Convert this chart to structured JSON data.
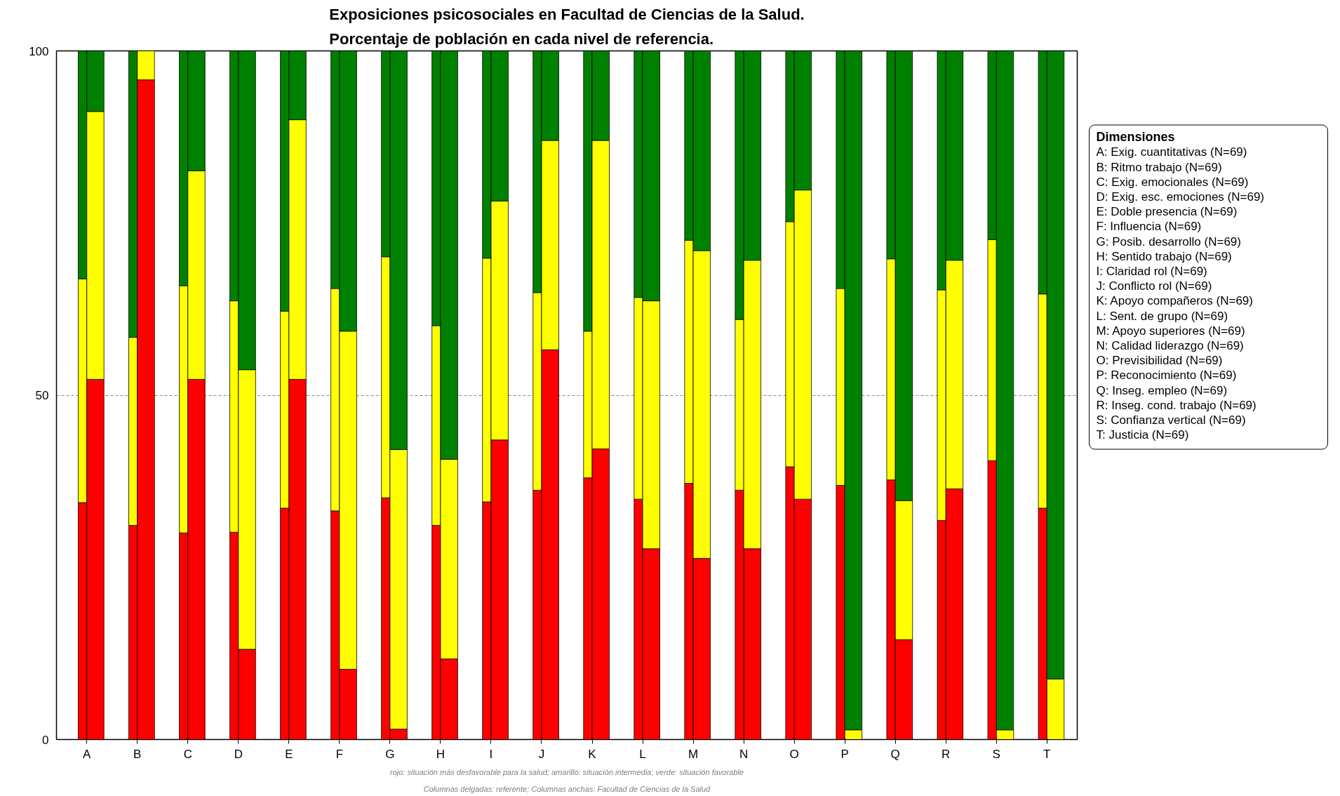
{
  "chart_data": [
    {
      "type": "bar",
      "stacked": true,
      "title": "Exposiciones psicosociales en Facultad de Ciencias de la Salud.\nPorcentaje de población en cada nivel de referencia.",
      "legend_title": "Dimensiones",
      "categories": [
        "A",
        "B",
        "C",
        "D",
        "E",
        "F",
        "G",
        "H",
        "I",
        "J",
        "K",
        "L",
        "M",
        "N",
        "O",
        "P",
        "Q",
        "R",
        "S",
        "T"
      ],
      "ylim": [
        0,
        100
      ],
      "yticks": [
        0,
        50,
        100
      ],
      "grid": "y",
      "line_style": "dashed",
      "series": [
        {
          "color": "#ff0000",
          "values": [
            34.4,
            31.1,
            30.0,
            30.1,
            33.6,
            33.2,
            35.1,
            31.1,
            34.5,
            36.2,
            38.0,
            34.9,
            37.2,
            36.2,
            39.6,
            36.9,
            37.7,
            31.8,
            40.5,
            33.6
          ]
        },
        {
          "color": "#ffff00",
          "values": [
            32.5,
            27.3,
            35.9,
            33.6,
            28.6,
            32.3,
            35.0,
            29.0,
            35.4,
            28.7,
            21.3,
            29.3,
            35.3,
            24.8,
            35.6,
            28.6,
            32.1,
            33.5,
            32.1,
            31.1
          ]
        },
        {
          "color": "#008000",
          "values": [
            33.1,
            41.6,
            34.1,
            36.3,
            37.8,
            34.5,
            29.9,
            39.9,
            30.1,
            35.1,
            40.7,
            35.8,
            27.5,
            39.0,
            24.8,
            34.5,
            30.2,
            34.7,
            27.4,
            35.3
          ]
        }
      ],
      "annotations": [
        "A: Exig. cuantitativas (N=69)",
        "B: Ritmo trabajo (N=69)",
        "C: Exig. emocionales (N=69)",
        "D: Exig. esc. emociones (N=69)",
        "E: Doble presencia (N=69)",
        "F: Influencia (N=69)",
        "G: Posib. desarrollo (N=69)",
        "H: Sentido trabajo (N=69)",
        "I: Claridad rol (N=69)",
        "J: Conflicto rol (N=69)",
        "K: Apoyo compañeros (N=69)",
        "L: Sent. de grupo (N=69)",
        "M: Apoyo superiores (N=69)",
        "N: Calidad liderazgo (N=69)",
        "O: Previsibilidad (N=69)",
        "P: Reconocimiento (N=69)",
        "Q: Inseg. empleo (N=69)",
        "R: Inseg. cond. trabajo (N=69)",
        "S: Confianza vertical (N=69)",
        "T: Justicia (N=69)",
        "rojo: situación más desfavorable para la salud; amarillo: situación intermedia; verde: situación favorable",
        "Columnas delgadas: referente; Columnas anchas: Facultad de Ciencias de la Salud"
      ]
    },
    {
      "type": "bar",
      "stacked": true,
      "ylim": [
        0,
        100
      ],
      "series": [
        {
          "color": "#ff0000",
          "values": [
            52.3,
            95.8,
            52.3,
            13.1,
            52.3,
            10.2,
            1.5,
            11.7,
            43.5,
            56.6,
            42.2,
            27.7,
            26.3,
            27.7,
            34.9,
            0,
            14.5,
            36.4,
            0,
            0
          ]
        },
        {
          "color": "#ffff00",
          "values": [
            38.9,
            4.2,
            30.3,
            40.6,
            37.7,
            49.1,
            40.6,
            29.0,
            34.7,
            30.4,
            44.8,
            36.0,
            44.7,
            41.9,
            44.9,
            1.4,
            20.2,
            33.2,
            1.4,
            8.8
          ]
        },
        {
          "color": "#008000",
          "values": [
            8.8,
            0,
            17.4,
            46.3,
            10.0,
            40.7,
            57.9,
            59.3,
            21.8,
            13.0,
            13.0,
            36.3,
            29.0,
            30.4,
            20.2,
            98.6,
            65.3,
            30.4,
            98.6,
            91.2
          ]
        }
      ]
    }
  ]
}
